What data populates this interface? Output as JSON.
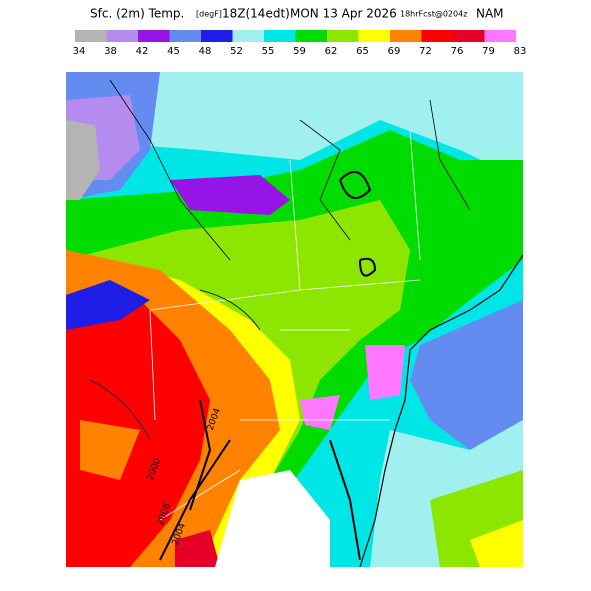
{
  "header": {
    "title_parts": [
      "Sfc. (2m) Temp.",
      "[degF]",
      "18Z(14edt)",
      "MON 13 Apr 2026",
      "18hrFcst@0204z",
      "NAM"
    ]
  },
  "colorbar": {
    "labels": [
      34,
      38,
      42,
      45,
      48,
      52,
      55,
      59,
      62,
      65,
      69,
      72,
      76,
      79,
      83
    ],
    "colors": [
      "#b4b4b4",
      "#b48cf0",
      "#9614e6",
      "#648cf0",
      "#1e1ee6",
      "#a0f0f0",
      "#00e6e6",
      "#00dc00",
      "#8ce600",
      "#ffff00",
      "#ff8200",
      "#ff0000",
      "#e60028",
      "#ff78ff"
    ]
  },
  "map": {
    "contour_labels": [
      "2000",
      "2004",
      "2004",
      "2008"
    ]
  }
}
